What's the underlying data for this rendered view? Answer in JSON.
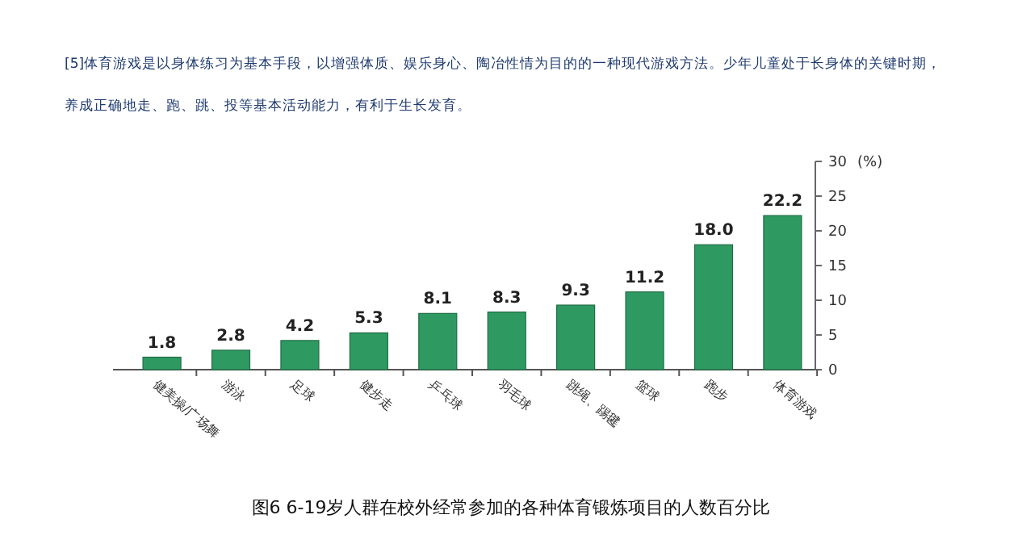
{
  "chart_data": {
    "type": "bar",
    "title": "图6  6-19岁人群在校外经常参加的各种体育锻炼项目的人数百分比",
    "subtitle": "[5]体育游戏是以身体练习为基本手段，以增强体质、娱乐身心、陶冶性情为目的的一种现代游戏方法。少年儿童处于长身体的关键时期，养成正确地走、跑、跳、投等基本活动能力，有利于生长发育。",
    "ylabel": "(%)",
    "categories": [
      "健美操/广场舞",
      "游泳",
      "足球",
      "健步走",
      "乒乓球",
      "羽毛球",
      "跳绳、踢毽",
      "篮球",
      "跑步",
      "体育游戏"
    ],
    "values": [
      1.8,
      2.8,
      4.2,
      5.3,
      8.1,
      8.3,
      9.3,
      11.2,
      18.0,
      22.2
    ],
    "value_labels": [
      "1.8",
      "2.8",
      "4.2",
      "5.3",
      "8.1",
      "8.3",
      "9.3",
      "11.2",
      "18.0",
      "22.2"
    ],
    "color": "#2e9a62",
    "ylim": [
      0,
      30
    ],
    "yticks": [
      0,
      5,
      10,
      15,
      20,
      25,
      30
    ]
  }
}
